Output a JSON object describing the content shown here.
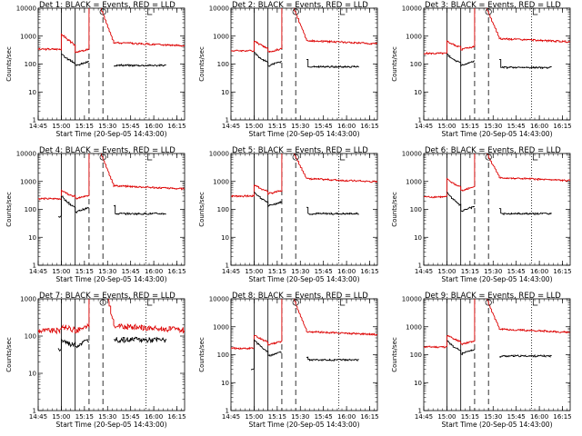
{
  "colors": {
    "background": "#ffffff",
    "events": "#000000",
    "lld": "#dd0000",
    "axes": "#000000"
  },
  "chart_data": [
    {
      "type": "line",
      "title": "Det 1: BLACK = Events, RED = LLD",
      "xlabel": "Start Time (20-Sep-05 14:43:00)",
      "ylabel": "Counts/sec",
      "yscale": "log",
      "ylim": [
        1,
        10000
      ],
      "xlim": [
        "14:45",
        "16:20"
      ],
      "xticks": [
        "14:45",
        "15:00",
        "15:15",
        "15:30",
        "15:45",
        "16:00",
        "16:15"
      ],
      "yticks": [
        "1",
        "10",
        "100",
        "1000",
        "10000"
      ],
      "markers": {
        "solid": [
          "15:00",
          "15:09"
        ],
        "dashed": [
          "15:18",
          "15:27"
        ],
        "dotted": [
          "15:55"
        ]
      },
      "annotations": {
        "S": "15:27",
        "E": "15:56"
      },
      "series": []
    },
    {
      "type": "line",
      "title": "Det 2: BLACK = Events, RED = LLD",
      "xlabel": "Start Time (20-Sep-05 14:43:00)",
      "ylabel": "Counts/sec",
      "yscale": "log",
      "ylim": [
        1,
        10000
      ],
      "xlim": [
        "14:45",
        "16:20"
      ],
      "xticks": [
        "14:45",
        "15:00",
        "15:15",
        "15:30",
        "15:45",
        "16:00",
        "16:15"
      ],
      "yticks": [
        "1",
        "10",
        "100",
        "1000",
        "10000"
      ],
      "markers": {
        "solid": [
          "15:00",
          "15:09"
        ],
        "dashed": [
          "15:18",
          "15:27"
        ],
        "dotted": [
          "15:55"
        ]
      },
      "annotations": {
        "S": "15:27",
        "E": "15:56"
      },
      "series": []
    },
    {
      "type": "line",
      "title": "Det 3: BLACK = Events, RED = LLD",
      "xlabel": "Start Time (20-Sep-05 14:43:00)",
      "ylabel": "Counts/sec",
      "yscale": "log",
      "ylim": [
        1,
        10000
      ],
      "xlim": [
        "14:45",
        "16:20"
      ],
      "xticks": [
        "14:45",
        "15:00",
        "15:15",
        "15:30",
        "15:45",
        "16:00",
        "16:15"
      ],
      "yticks": [
        "1",
        "10",
        "100",
        "1000",
        "10000"
      ],
      "markers": {
        "solid": [
          "15:00",
          "15:09"
        ],
        "dashed": [
          "15:18",
          "15:27"
        ],
        "dotted": [
          "15:55"
        ]
      },
      "annotations": {
        "S": "15:27",
        "E": "15:56"
      },
      "series": []
    },
    {
      "type": "line",
      "title": "Det 4: BLACK = Events, RED = LLD",
      "xlabel": "Start Time (20-Sep-05 14:43:00)",
      "ylabel": "Counts/sec",
      "yscale": "log",
      "ylim": [
        1,
        10000
      ],
      "xlim": [
        "14:45",
        "16:20"
      ],
      "xticks": [
        "14:45",
        "15:00",
        "15:15",
        "15:30",
        "15:45",
        "16:00",
        "16:15"
      ],
      "yticks": [
        "1",
        "10",
        "100",
        "1000",
        "10000"
      ],
      "markers": {
        "solid": [
          "15:00",
          "15:09"
        ],
        "dashed": [
          "15:18",
          "15:27"
        ],
        "dotted": [
          "15:55"
        ]
      },
      "annotations": {
        "S": "15:27",
        "E": "15:56"
      },
      "series": []
    },
    {
      "type": "line",
      "title": "Det 5: BLACK = Events, RED = LLD",
      "xlabel": "Start Time (20-Sep-05 14:43:00)",
      "ylabel": "Counts/sec",
      "yscale": "log",
      "ylim": [
        1,
        10000
      ],
      "xlim": [
        "14:45",
        "16:20"
      ],
      "xticks": [
        "14:45",
        "15:00",
        "15:15",
        "15:30",
        "15:45",
        "16:00",
        "16:15"
      ],
      "yticks": [
        "1",
        "10",
        "100",
        "1000",
        "10000"
      ],
      "markers": {
        "solid": [
          "15:00",
          "15:09"
        ],
        "dashed": [
          "15:18",
          "15:27"
        ],
        "dotted": [
          "15:55"
        ]
      },
      "annotations": {
        "S": "15:27",
        "E": "15:56"
      },
      "series": []
    },
    {
      "type": "line",
      "title": "Det 6: BLACK = Events, RED = LLD",
      "xlabel": "Start Time (20-Sep-05 14:43:00)",
      "ylabel": "Counts/sec",
      "yscale": "log",
      "ylim": [
        1,
        10000
      ],
      "xlim": [
        "14:45",
        "16:20"
      ],
      "xticks": [
        "14:45",
        "15:00",
        "15:15",
        "15:30",
        "15:45",
        "16:00",
        "16:15"
      ],
      "yticks": [
        "1",
        "10",
        "100",
        "1000",
        "10000"
      ],
      "markers": {
        "solid": [
          "15:00",
          "15:09"
        ],
        "dashed": [
          "15:18",
          "15:27"
        ],
        "dotted": [
          "15:55"
        ]
      },
      "annotations": {
        "S": "15:27",
        "E": "15:56"
      },
      "series": []
    },
    {
      "type": "line",
      "title": "Det 7: BLACK = Events, RED = LLD",
      "xlabel": "Start Time (20-Sep-05 14:43:00)",
      "ylabel": "Counts/sec",
      "yscale": "log",
      "ylim": [
        1,
        1000
      ],
      "xlim": [
        "14:45",
        "16:20"
      ],
      "xticks": [
        "14:45",
        "15:00",
        "15:15",
        "15:30",
        "15:45",
        "16:00",
        "16:15"
      ],
      "yticks": [
        "1",
        "10",
        "100",
        "1000"
      ],
      "markers": {
        "solid": [
          "15:00",
          "15:09"
        ],
        "dashed": [
          "15:18",
          "15:27"
        ],
        "dotted": [
          "15:55"
        ]
      },
      "annotations": {
        "S": "15:27",
        "E": "15:56"
      },
      "series": []
    },
    {
      "type": "line",
      "title": "Det 8: BLACK = Events, RED = LLD",
      "xlabel": "Start Time (20-Sep-05 14:43:00)",
      "ylabel": "Counts/sec",
      "yscale": "log",
      "ylim": [
        1,
        10000
      ],
      "xlim": [
        "14:45",
        "16:20"
      ],
      "xticks": [
        "14:45",
        "15:00",
        "15:15",
        "15:30",
        "15:45",
        "16:00",
        "16:15"
      ],
      "yticks": [
        "1",
        "10",
        "100",
        "1000",
        "10000"
      ],
      "markers": {
        "solid": [
          "15:00",
          "15:09"
        ],
        "dashed": [
          "15:18",
          "15:27"
        ],
        "dotted": [
          "15:55"
        ]
      },
      "annotations": {
        "S": "15:27",
        "E": "15:56"
      },
      "series": []
    },
    {
      "type": "line",
      "title": "Det 9: BLACK = Events, RED = LLD",
      "xlabel": "Start Time (20-Sep-05 14:43:00)",
      "ylabel": "Counts/sec",
      "yscale": "log",
      "ylim": [
        1,
        10000
      ],
      "xlim": [
        "14:45",
        "16:20"
      ],
      "xticks": [
        "14:45",
        "15:00",
        "15:15",
        "15:30",
        "15:45",
        "16:00",
        "16:15"
      ],
      "yticks": [
        "1",
        "10",
        "100",
        "1000",
        "10000"
      ],
      "markers": {
        "solid": [
          "15:00",
          "15:09"
        ],
        "dashed": [
          "15:18",
          "15:27"
        ],
        "dotted": [
          "15:55"
        ]
      },
      "annotations": {
        "S": "15:27",
        "E": "15:56"
      },
      "series": []
    }
  ]
}
